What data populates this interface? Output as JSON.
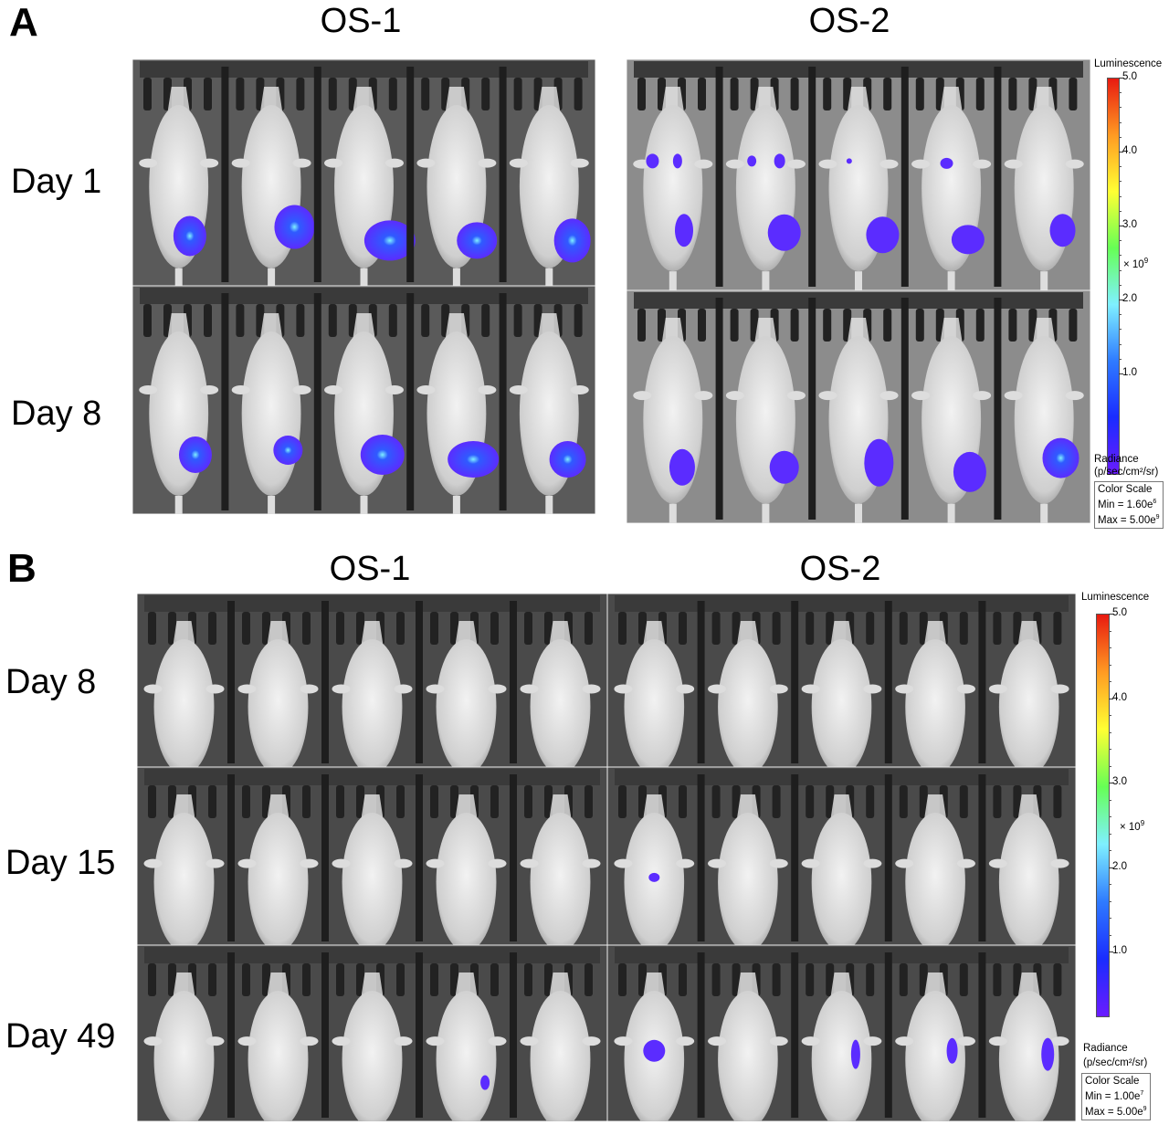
{
  "panel_a": {
    "letter": "A",
    "columns": [
      "OS-1",
      "OS-2"
    ],
    "rows": [
      "Day 1",
      "Day 8"
    ],
    "colorbar": {
      "title": "Luminescence",
      "ticks": [
        "5.0",
        "4.0",
        "3.0",
        "2.0",
        "1.0"
      ],
      "multiplier": "× 10",
      "multiplier_exp": "9",
      "unit_label": "Radiance",
      "unit": "(p/sec/cm²/sr)",
      "scale_title": "Color Scale",
      "min_label": "Min = 1.60e",
      "min_exp": "6",
      "max_label": "Max = 5.00e",
      "max_exp": "9"
    }
  },
  "panel_b": {
    "letter": "B",
    "columns": [
      "OS-1",
      "OS-2"
    ],
    "rows": [
      "Day 8",
      "Day 15",
      "Day 49"
    ],
    "colorbar": {
      "title": "Luminescence",
      "ticks": [
        "5.0",
        "4.0",
        "3.0",
        "2.0",
        "1.0"
      ],
      "multiplier": "× 10",
      "multiplier_exp": "9",
      "unit_label": "Radiance",
      "unit": "(p/sec/cm²/sr)",
      "scale_title": "Color Scale",
      "min_label": "Min = 1.00e",
      "min_exp": "7",
      "max_label": "Max = 5.00e",
      "max_exp": "9"
    }
  },
  "colors": {
    "colormap": [
      "#6a1cff",
      "#1a2cff",
      "#2f7bff",
      "#7ff0ff",
      "#66ff55",
      "#ffff33",
      "#ff9a22",
      "#e81a10"
    ],
    "signal": "#5b2cff"
  }
}
